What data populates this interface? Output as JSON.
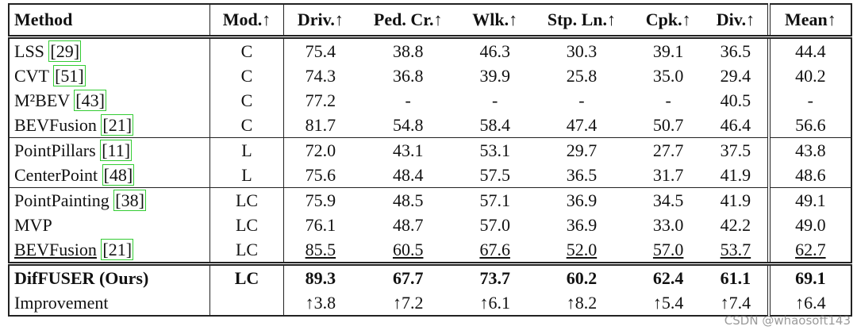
{
  "header": [
    "Method",
    "Mod.↑",
    "Driv.↑",
    "Ped. Cr.↑",
    "Wlk.↑",
    "Stp. Ln.↑",
    "Cpk.↑",
    "Div.↑",
    "Mean↑"
  ],
  "groups": [
    [
      {
        "method": "LSS",
        "ref": "[29]",
        "modality": "C",
        "scores": [
          "75.4",
          "38.8",
          "46.3",
          "30.3",
          "39.1",
          "36.5",
          "44.4"
        ]
      },
      {
        "method": "CVT",
        "ref": "[51]",
        "modality": "C",
        "scores": [
          "74.3",
          "36.8",
          "39.9",
          "25.8",
          "35.0",
          "29.4",
          "40.2"
        ]
      },
      {
        "method": "M²BEV",
        "ref": "[43]",
        "modality": "C",
        "scores": [
          "77.2",
          "-",
          "-",
          "-",
          "-",
          "40.5",
          "-"
        ]
      },
      {
        "method": "BEVFusion",
        "ref": "[21]",
        "modality": "C",
        "scores": [
          "81.7",
          "54.8",
          "58.4",
          "47.4",
          "50.7",
          "46.4",
          "56.6"
        ]
      }
    ],
    [
      {
        "method": "PointPillars",
        "ref": "[11]",
        "modality": "L",
        "scores": [
          "72.0",
          "43.1",
          "53.1",
          "29.7",
          "27.7",
          "37.5",
          "43.8"
        ]
      },
      {
        "method": "CenterPoint",
        "ref": "[48]",
        "modality": "L",
        "scores": [
          "75.6",
          "48.4",
          "57.5",
          "36.5",
          "31.7",
          "41.9",
          "48.6"
        ]
      }
    ],
    [
      {
        "method": "PointPainting",
        "ref": "[38]",
        "modality": "LC",
        "scores": [
          "75.9",
          "48.5",
          "57.1",
          "36.9",
          "34.5",
          "41.9",
          "49.1"
        ]
      },
      {
        "method": "MVP",
        "modality": "LC",
        "scores": [
          "76.1",
          "48.7",
          "57.0",
          "36.9",
          "33.0",
          "42.2",
          "49.0"
        ]
      },
      {
        "method": "BEVFusion",
        "ref": "[21]",
        "modality": "LC",
        "style": "underline",
        "scores": [
          "85.5",
          "60.5",
          "67.6",
          "52.0",
          "57.0",
          "53.7",
          "62.7"
        ]
      }
    ],
    [
      {
        "method": "DifFUSER (Ours)",
        "modality": "LC",
        "style": "bold",
        "scores": [
          "89.3",
          "67.7",
          "73.7",
          "60.2",
          "62.4",
          "61.1",
          "69.1"
        ]
      },
      {
        "method": "Improvement",
        "scores": [
          "↑3.8",
          "↑7.2",
          "↑6.1",
          "↑8.2",
          "↑5.4",
          "↑7.4",
          "↑6.4"
        ]
      }
    ]
  ],
  "watermark": "CSDN @whaosoft143"
}
